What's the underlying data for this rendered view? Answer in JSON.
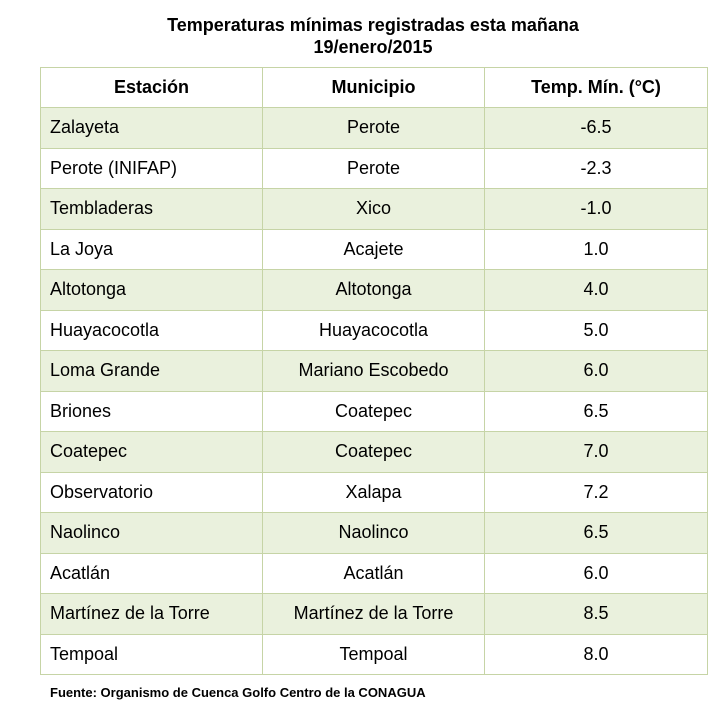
{
  "title": {
    "line1": "Temperaturas mínimas registradas esta mañana",
    "line2": "19/enero/2015"
  },
  "table": {
    "headers": [
      "Estación",
      "Municipio",
      "Temp. Mín. (°C)"
    ],
    "rows": [
      [
        "Zalayeta",
        "Perote",
        "-6.5"
      ],
      [
        "Perote (INIFAP)",
        "Perote",
        "-2.3"
      ],
      [
        "Tembladeras",
        "Xico",
        "-1.0"
      ],
      [
        "La Joya",
        "Acajete",
        "1.0"
      ],
      [
        "Altotonga",
        "Altotonga",
        "4.0"
      ],
      [
        "Huayacocotla",
        "Huayacocotla",
        "5.0"
      ],
      [
        "Loma Grande",
        "Mariano Escobedo",
        "6.0"
      ],
      [
        "Briones",
        "Coatepec",
        "6.5"
      ],
      [
        "Coatepec",
        "Coatepec",
        "7.0"
      ],
      [
        "Observatorio",
        "Xalapa",
        "7.2"
      ],
      [
        "Naolinco",
        "Naolinco",
        "6.5"
      ],
      [
        "Acatlán",
        "Acatlán",
        "6.0"
      ],
      [
        "Martínez de la Torre",
        "Martínez de la Torre",
        "8.5"
      ],
      [
        "Tempoal",
        "Tempoal",
        "8.0"
      ]
    ]
  },
  "source": "Fuente: Organismo de Cuenca Golfo Centro de la CONAGUA",
  "colors": {
    "stripe": "#eaf1dd",
    "border": "#c6d4a6"
  }
}
